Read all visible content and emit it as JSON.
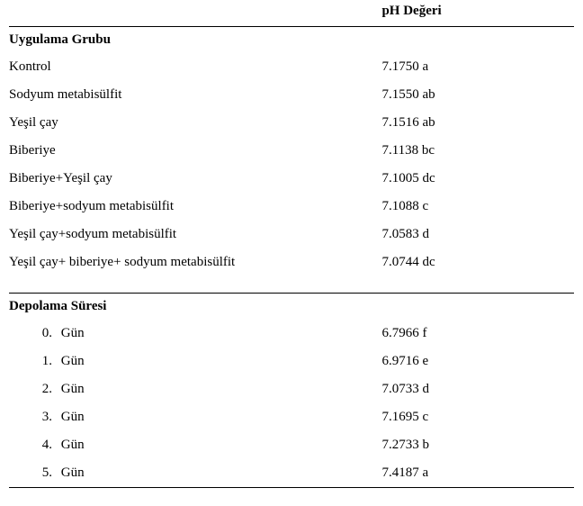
{
  "header": {
    "value_col": "pH Değeri"
  },
  "section1": {
    "title": "Uygulama Grubu",
    "rows": [
      {
        "label": "Kontrol",
        "value": "7.1750 a"
      },
      {
        "label": "Sodyum metabisülfit",
        "value": "7.1550 ab"
      },
      {
        "label": "Yeşil çay",
        "value": "7.1516 ab"
      },
      {
        "label": "Biberiye",
        "value": "7.1138 bc"
      },
      {
        "label": "Biberiye+Yeşil çay",
        "value": "7.1005 dc"
      },
      {
        "label": "Biberiye+sodyum metabisülfit",
        "value": "7.1088 c"
      },
      {
        "label": "Yeşil çay+sodyum metabisülfit",
        "value": "7.0583 d"
      },
      {
        "label": "Yeşil çay+ biberiye+ sodyum metabisülfit",
        "value": "7.0744 dc"
      }
    ]
  },
  "section2": {
    "title": "Depolama Süresi",
    "day_word": "Gün",
    "rows": [
      {
        "num": "0.",
        "value": "6.7966 f"
      },
      {
        "num": "1.",
        "value": "6.9716 e"
      },
      {
        "num": "2.",
        "value": "7.0733 d"
      },
      {
        "num": "3.",
        "value": "7.1695 c"
      },
      {
        "num": "4.",
        "value": "7.2733 b"
      },
      {
        "num": "5.",
        "value": "7.4187 a"
      }
    ]
  },
  "style": {
    "font_family": "Times New Roman",
    "font_size_pt": 11,
    "text_color": "#000000",
    "background_color": "#ffffff",
    "rule_color": "#000000"
  }
}
